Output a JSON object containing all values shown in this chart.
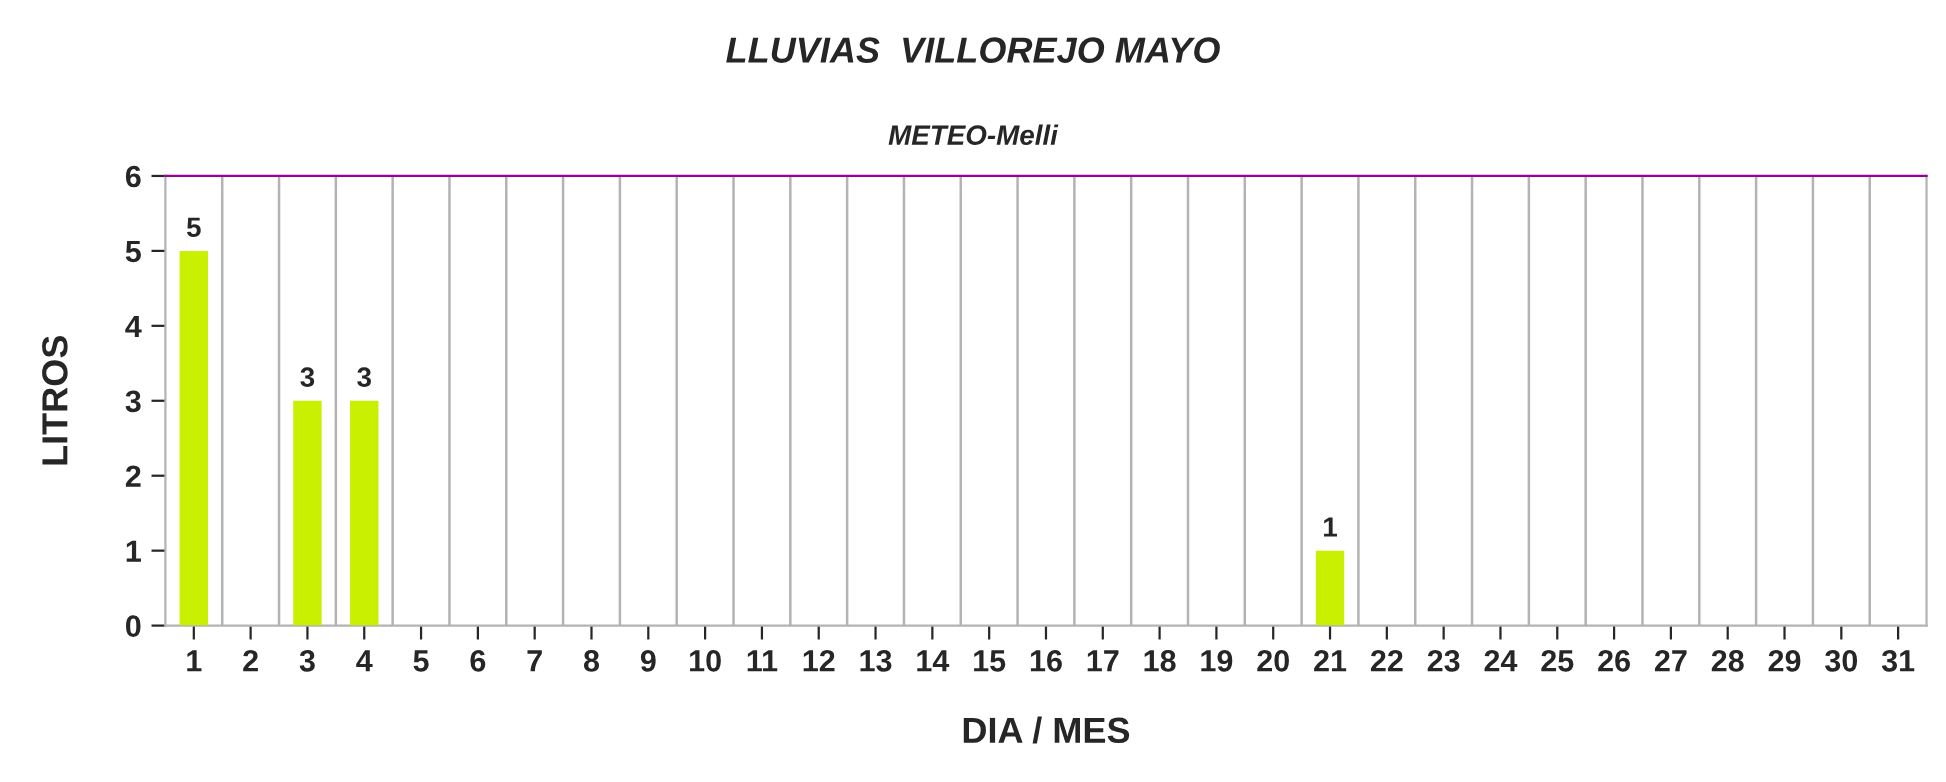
{
  "chart_data": {
    "type": "bar",
    "title": "LLUVIAS  VILLOREJO MAYO",
    "subtitle": "METEO-Melli",
    "xlabel": "DIA / MES",
    "ylabel": "LITROS",
    "categories": [
      "1",
      "2",
      "3",
      "4",
      "5",
      "6",
      "7",
      "8",
      "9",
      "10",
      "11",
      "12",
      "13",
      "14",
      "15",
      "16",
      "17",
      "18",
      "19",
      "20",
      "21",
      "22",
      "23",
      "24",
      "25",
      "26",
      "27",
      "28",
      "29",
      "30",
      "31"
    ],
    "values": [
      5,
      0,
      3,
      3,
      0,
      0,
      0,
      0,
      0,
      0,
      0,
      0,
      0,
      0,
      0,
      0,
      0,
      0,
      0,
      0,
      1,
      0,
      0,
      0,
      0,
      0,
      0,
      0,
      0,
      0,
      0
    ],
    "value_labels": [
      "5",
      null,
      "3",
      "3",
      null,
      null,
      null,
      null,
      null,
      null,
      null,
      null,
      null,
      null,
      null,
      null,
      null,
      null,
      null,
      null,
      "1",
      null,
      null,
      null,
      null,
      null,
      null,
      null,
      null,
      null,
      null
    ],
    "color": "#c8f000",
    "ylim": [
      0,
      6
    ],
    "yticks": [
      0,
      1,
      2,
      3,
      4,
      5,
      6
    ],
    "grid": "x",
    "legend": false
  }
}
